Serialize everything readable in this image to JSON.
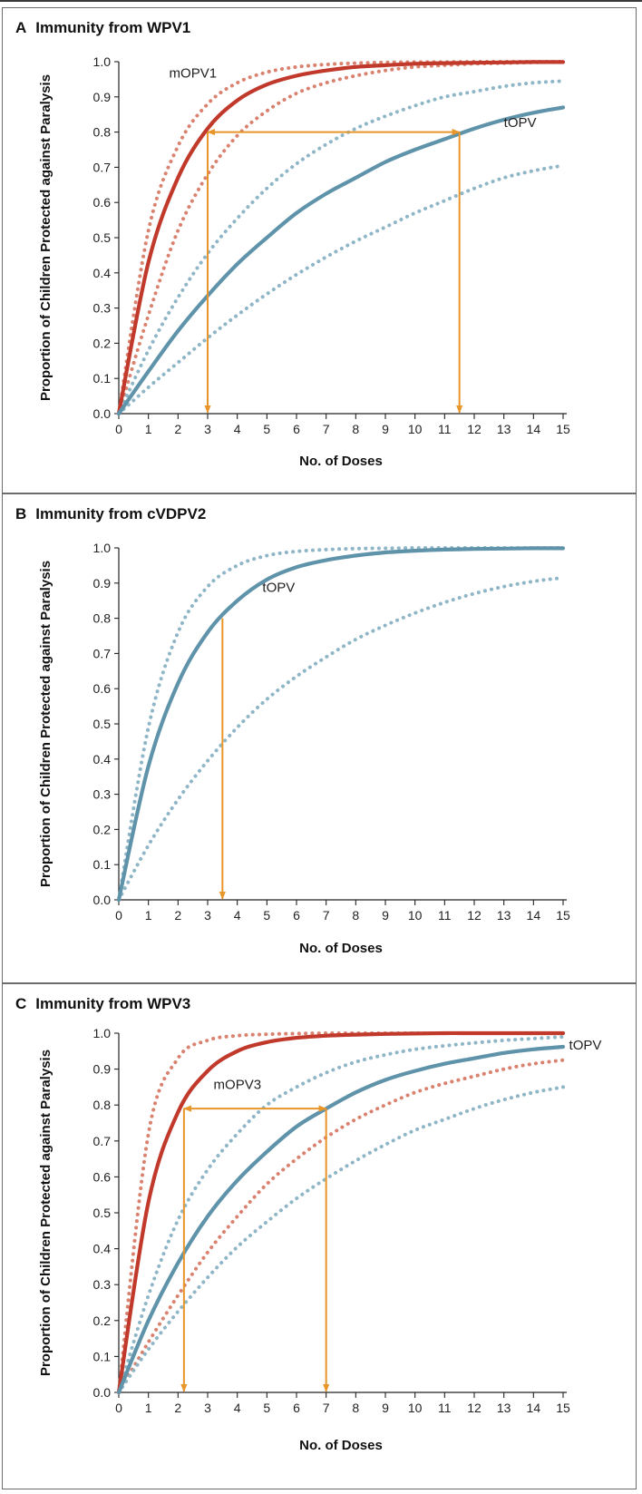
{
  "chart_data": [
    {
      "type": "line",
      "panel_letter": "A",
      "title": "Immunity from WPV1",
      "xlabel": "No. of Doses",
      "ylabel": "Proportion of Children Protected against Paralysis",
      "xlim": [
        0,
        15
      ],
      "ylim": [
        0,
        1
      ],
      "x_ticks": [
        0,
        1,
        2,
        3,
        4,
        5,
        6,
        7,
        8,
        9,
        10,
        11,
        12,
        13,
        14,
        15
      ],
      "y_ticks": [
        "0.0",
        "0.1",
        "0.2",
        "0.3",
        "0.4",
        "0.5",
        "0.6",
        "0.7",
        "0.8",
        "0.9",
        "1.0"
      ],
      "x": [
        0,
        1,
        2,
        3,
        4,
        5,
        6,
        7,
        8,
        9,
        10,
        11,
        12,
        13,
        14,
        15
      ],
      "series": [
        {
          "name": "mOPV1",
          "style": "solid",
          "color": "#c0392b",
          "values": [
            0,
            0.43,
            0.67,
            0.81,
            0.89,
            0.935,
            0.96,
            0.975,
            0.985,
            0.99,
            0.994,
            0.996,
            0.997,
            0.998,
            0.999,
            0.999
          ]
        },
        {
          "style": "dotted",
          "color": "#d9826f",
          "values": [
            0,
            0.52,
            0.76,
            0.88,
            0.94,
            0.97,
            0.985,
            0.992,
            0.996,
            0.998,
            0.999,
            0.999,
            1,
            1,
            1,
            1
          ]
        },
        {
          "style": "dotted",
          "color": "#d9826f",
          "values": [
            0,
            0.28,
            0.52,
            0.68,
            0.79,
            0.86,
            0.91,
            0.94,
            0.96,
            0.975,
            0.985,
            0.99,
            0.994,
            0.996,
            0.998,
            0.999
          ]
        },
        {
          "name": "tOPV",
          "style": "solid",
          "color": "#5f93aa",
          "values": [
            0,
            0.12,
            0.235,
            0.335,
            0.425,
            0.5,
            0.57,
            0.625,
            0.67,
            0.715,
            0.75,
            0.78,
            0.81,
            0.835,
            0.855,
            0.87
          ]
        },
        {
          "style": "dotted",
          "color": "#8fb6c7",
          "values": [
            0,
            0.18,
            0.33,
            0.455,
            0.555,
            0.64,
            0.71,
            0.765,
            0.81,
            0.845,
            0.875,
            0.9,
            0.915,
            0.93,
            0.94,
            0.945
          ]
        },
        {
          "style": "dotted",
          "color": "#8fb6c7",
          "values": [
            0,
            0.075,
            0.145,
            0.215,
            0.28,
            0.34,
            0.395,
            0.445,
            0.49,
            0.53,
            0.57,
            0.605,
            0.64,
            0.67,
            0.69,
            0.705
          ]
        }
      ],
      "annotations": [
        {
          "type": "arrow-h",
          "x1": 3,
          "x2": 11.5,
          "y": 0.8
        },
        {
          "type": "arrow-down",
          "x": 3,
          "y_from": 0.8
        },
        {
          "type": "arrow-down",
          "x": 11.5,
          "y_from": 0.8
        }
      ],
      "labels": [
        {
          "text": "mOPV1",
          "x": 1.7,
          "y": 0.955
        },
        {
          "text": "tOPV",
          "x": 13.0,
          "y": 0.815
        }
      ]
    },
    {
      "type": "line",
      "panel_letter": "B",
      "title": "Immunity from cVDPV2",
      "xlabel": "No. of Doses",
      "ylabel": "Proportion of Children Protected against Paralysis",
      "xlim": [
        0,
        15
      ],
      "ylim": [
        0,
        1
      ],
      "x_ticks": [
        0,
        1,
        2,
        3,
        4,
        5,
        6,
        7,
        8,
        9,
        10,
        11,
        12,
        13,
        14,
        15
      ],
      "y_ticks": [
        "0.0",
        "0.1",
        "0.2",
        "0.3",
        "0.4",
        "0.5",
        "0.6",
        "0.7",
        "0.8",
        "0.9",
        "1.0"
      ],
      "x": [
        0,
        1,
        2,
        3,
        4,
        5,
        6,
        7,
        8,
        9,
        10,
        11,
        12,
        13,
        14,
        15
      ],
      "series": [
        {
          "name": "tOPV",
          "style": "solid",
          "color": "#5f93aa",
          "values": [
            0,
            0.38,
            0.615,
            0.76,
            0.85,
            0.91,
            0.945,
            0.965,
            0.978,
            0.987,
            0.992,
            0.995,
            0.997,
            0.998,
            0.999,
            0.999
          ]
        },
        {
          "style": "dotted",
          "color": "#8fb6c7",
          "values": [
            0,
            0.49,
            0.76,
            0.89,
            0.95,
            0.978,
            0.99,
            0.995,
            0.998,
            0.999,
            1,
            1,
            1,
            1,
            1,
            1
          ]
        },
        {
          "style": "dotted",
          "color": "#8fb6c7",
          "values": [
            0,
            0.155,
            0.285,
            0.395,
            0.49,
            0.57,
            0.635,
            0.69,
            0.74,
            0.78,
            0.815,
            0.845,
            0.87,
            0.89,
            0.905,
            0.915
          ]
        }
      ],
      "annotations": [
        {
          "type": "arrow-down",
          "x": 3.5,
          "y_from": 0.8
        }
      ],
      "labels": [
        {
          "text": "tOPV",
          "x": 4.85,
          "y": 0.875
        }
      ]
    },
    {
      "type": "line",
      "panel_letter": "C",
      "title": "Immunity from WPV3",
      "xlabel": "No. of Doses",
      "ylabel": "Proportion of Children Protected against Paralysis",
      "xlim": [
        0,
        15
      ],
      "ylim": [
        0,
        1
      ],
      "x_ticks": [
        0,
        1,
        2,
        3,
        4,
        5,
        6,
        7,
        8,
        9,
        10,
        11,
        12,
        13,
        14,
        15
      ],
      "y_ticks": [
        "0.0",
        "0.1",
        "0.2",
        "0.3",
        "0.4",
        "0.5",
        "0.6",
        "0.7",
        "0.8",
        "0.9",
        "1.0"
      ],
      "x": [
        0,
        1,
        2,
        3,
        4,
        5,
        6,
        7,
        8,
        9,
        10,
        11,
        12,
        13,
        14,
        15
      ],
      "series": [
        {
          "name": "mOPV3",
          "style": "solid",
          "color": "#c0392b",
          "values": [
            0,
            0.53,
            0.78,
            0.895,
            0.95,
            0.975,
            0.987,
            0.993,
            0.996,
            0.998,
            0.999,
            1,
            1,
            1,
            1,
            1
          ]
        },
        {
          "style": "dotted",
          "color": "#d9826f",
          "values": [
            0,
            0.72,
            0.93,
            0.98,
            0.993,
            0.997,
            0.999,
            1,
            1,
            1,
            1,
            1,
            1,
            1,
            1,
            1
          ]
        },
        {
          "style": "dotted",
          "color": "#d9826f",
          "values": [
            0,
            0.14,
            0.27,
            0.39,
            0.49,
            0.58,
            0.65,
            0.71,
            0.76,
            0.8,
            0.835,
            0.86,
            0.88,
            0.9,
            0.915,
            0.925
          ]
        },
        {
          "name": "tOPV",
          "style": "solid",
          "color": "#5f93aa",
          "values": [
            0,
            0.2,
            0.36,
            0.49,
            0.59,
            0.67,
            0.74,
            0.79,
            0.835,
            0.87,
            0.895,
            0.915,
            0.93,
            0.945,
            0.955,
            0.962
          ]
        },
        {
          "style": "dotted",
          "color": "#8fb6c7",
          "values": [
            0,
            0.27,
            0.48,
            0.62,
            0.72,
            0.8,
            0.85,
            0.89,
            0.92,
            0.94,
            0.955,
            0.965,
            0.973,
            0.98,
            0.985,
            0.99
          ]
        },
        {
          "style": "dotted",
          "color": "#8fb6c7",
          "values": [
            0,
            0.12,
            0.225,
            0.32,
            0.405,
            0.475,
            0.54,
            0.595,
            0.645,
            0.69,
            0.73,
            0.76,
            0.79,
            0.815,
            0.835,
            0.85
          ]
        }
      ],
      "annotations": [
        {
          "type": "arrow-h",
          "x1": 2.2,
          "x2": 7,
          "y": 0.79
        },
        {
          "type": "arrow-down",
          "x": 2.2,
          "y_from": 0.79
        },
        {
          "type": "arrow-down",
          "x": 7,
          "y_from": 0.79
        }
      ],
      "labels": [
        {
          "text": "mOPV3",
          "x": 3.2,
          "y": 0.845
        },
        {
          "text": "tOPV",
          "x": 15.2,
          "y": 0.955
        }
      ]
    }
  ]
}
